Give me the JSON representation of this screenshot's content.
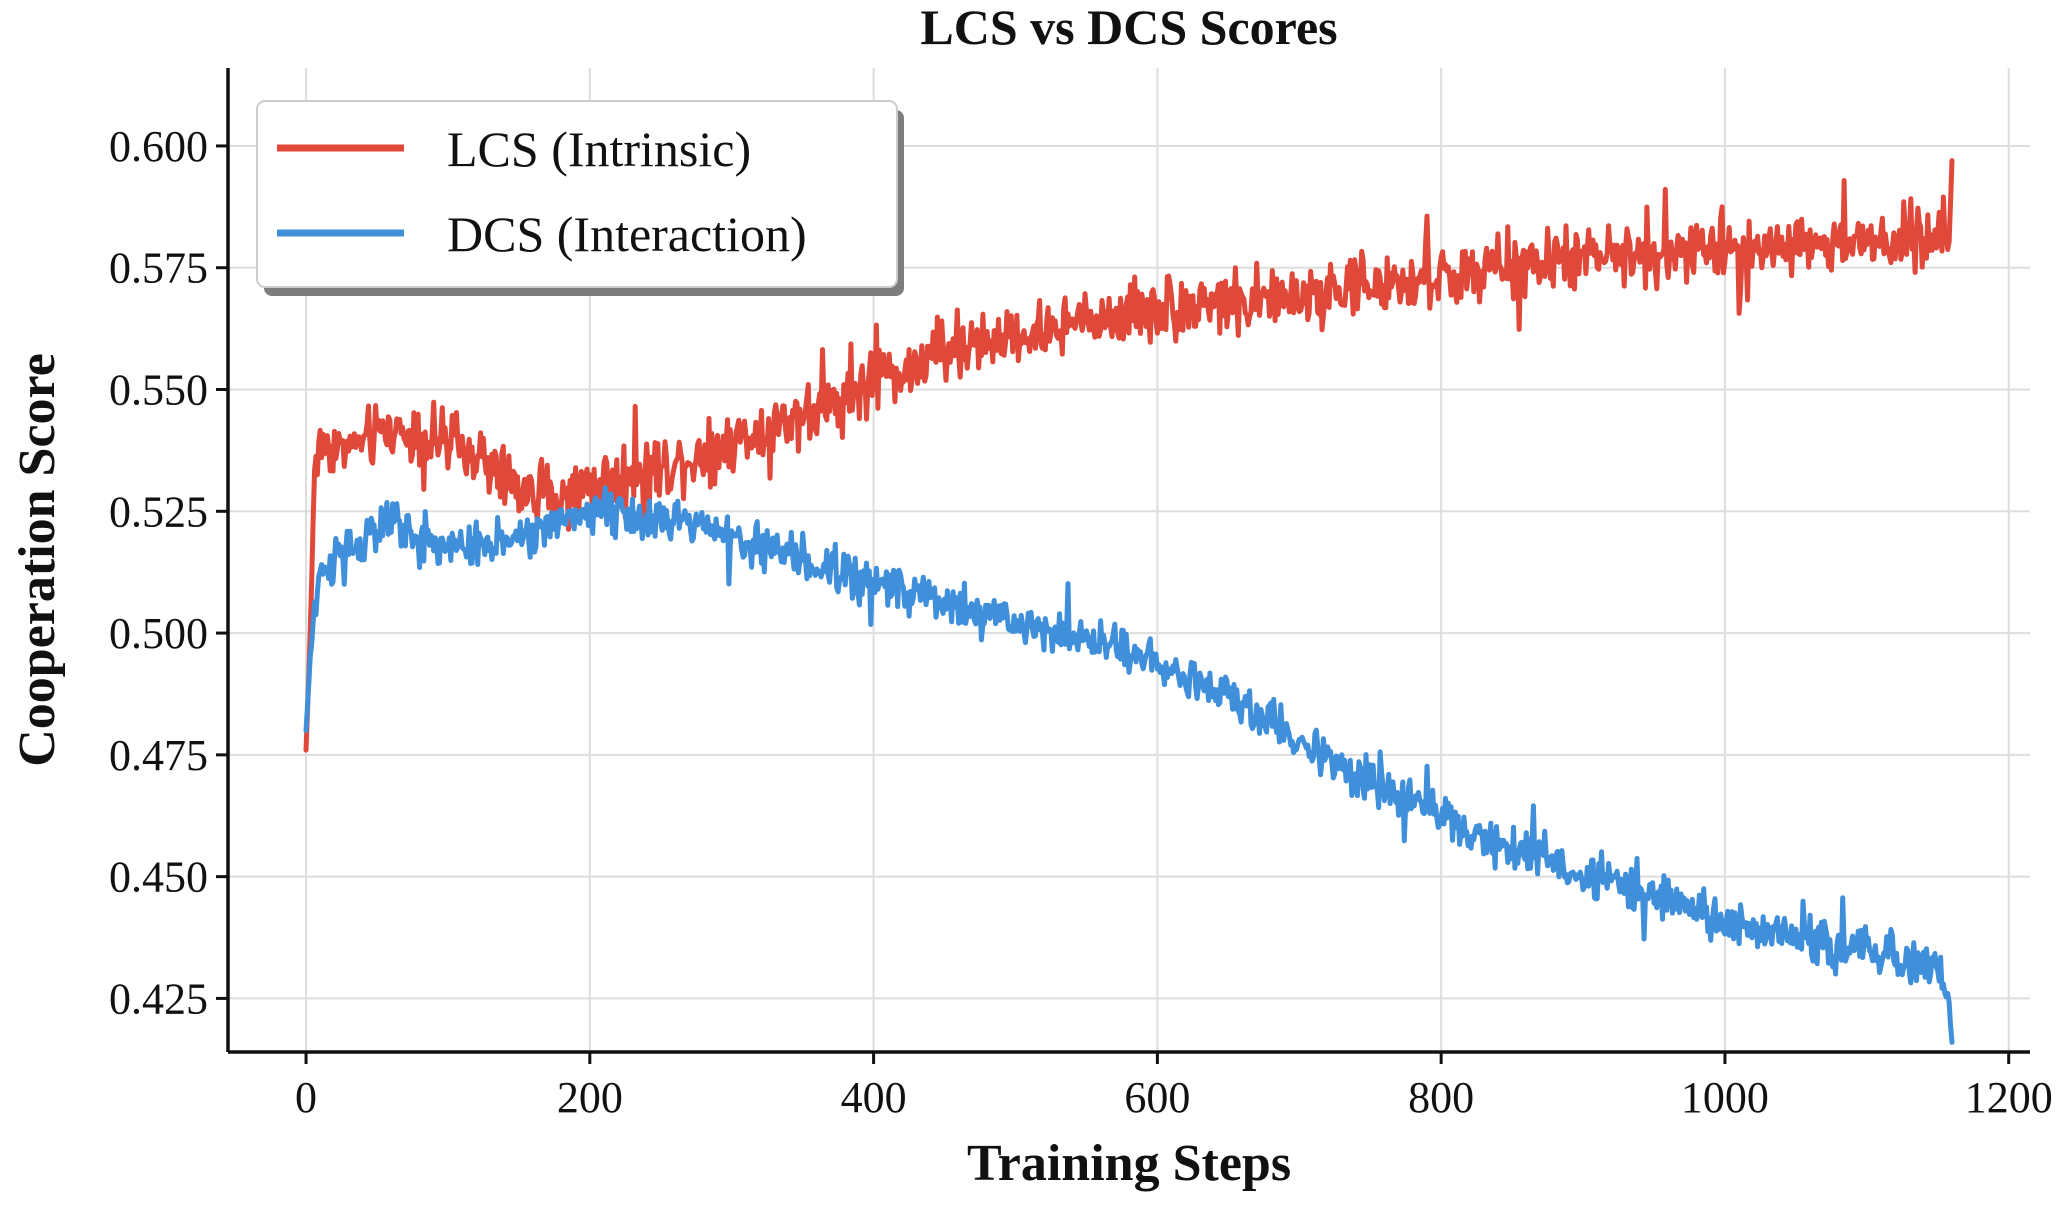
{
  "chart_data": {
    "type": "line",
    "title": "LCS vs DCS Scores",
    "xlabel": "Training Steps",
    "ylabel": "Cooperation Score",
    "xlim": [
      -55,
      1215
    ],
    "ylim": [
      0.414,
      0.616
    ],
    "xticks": [
      0,
      200,
      400,
      600,
      800,
      1000,
      1200
    ],
    "xtick_labels": [
      "0",
      "200",
      "400",
      "600",
      "800",
      "1000",
      "1200"
    ],
    "yticks": [
      0.425,
      0.45,
      0.475,
      0.5,
      0.525,
      0.55,
      0.575,
      0.6
    ],
    "ytick_labels": [
      "0.425",
      "0.450",
      "0.475",
      "0.500",
      "0.525",
      "0.550",
      "0.575",
      "0.600"
    ],
    "grid": true,
    "legend_position": "top-left",
    "x_range": [
      0,
      1160
    ],
    "series": [
      {
        "name": "LCS (Intrinsic)",
        "color": "#e0483a",
        "noise": 0.009,
        "anchors": [
          [
            0,
            0.476
          ],
          [
            3,
            0.5
          ],
          [
            6,
            0.535
          ],
          [
            12,
            0.539
          ],
          [
            30,
            0.538
          ],
          [
            60,
            0.542
          ],
          [
            90,
            0.54
          ],
          [
            120,
            0.536
          ],
          [
            150,
            0.53
          ],
          [
            180,
            0.528
          ],
          [
            210,
            0.531
          ],
          [
            250,
            0.534
          ],
          [
            290,
            0.538
          ],
          [
            330,
            0.543
          ],
          [
            370,
            0.547
          ],
          [
            410,
            0.553
          ],
          [
            450,
            0.557
          ],
          [
            500,
            0.561
          ],
          [
            550,
            0.564
          ],
          [
            600,
            0.567
          ],
          [
            650,
            0.568
          ],
          [
            700,
            0.569
          ],
          [
            750,
            0.571
          ],
          [
            800,
            0.573
          ],
          [
            850,
            0.575
          ],
          [
            900,
            0.577
          ],
          [
            950,
            0.578
          ],
          [
            1000,
            0.579
          ],
          [
            1050,
            0.58
          ],
          [
            1100,
            0.58
          ],
          [
            1160,
            0.582
          ]
        ],
        "end_value": 0.597
      },
      {
        "name": "DCS (Interaction)",
        "color": "#3f8fdb",
        "noise": 0.0065,
        "anchors": [
          [
            0,
            0.48
          ],
          [
            3,
            0.495
          ],
          [
            8,
            0.51
          ],
          [
            20,
            0.515
          ],
          [
            60,
            0.523
          ],
          [
            100,
            0.518
          ],
          [
            140,
            0.519
          ],
          [
            180,
            0.524
          ],
          [
            210,
            0.526
          ],
          [
            250,
            0.523
          ],
          [
            300,
            0.52
          ],
          [
            350,
            0.515
          ],
          [
            400,
            0.51
          ],
          [
            450,
            0.506
          ],
          [
            500,
            0.502
          ],
          [
            550,
            0.499
          ],
          [
            600,
            0.494
          ],
          [
            650,
            0.487
          ],
          [
            700,
            0.478
          ],
          [
            750,
            0.47
          ],
          [
            800,
            0.462
          ],
          [
            850,
            0.456
          ],
          [
            900,
            0.451
          ],
          [
            950,
            0.446
          ],
          [
            1000,
            0.441
          ],
          [
            1050,
            0.438
          ],
          [
            1100,
            0.435
          ],
          [
            1150,
            0.432
          ],
          [
            1160,
            0.42
          ]
        ],
        "end_value": 0.416
      }
    ]
  }
}
